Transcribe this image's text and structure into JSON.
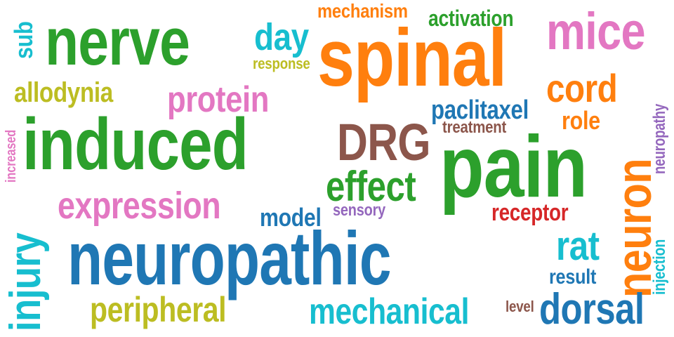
{
  "colors": {
    "green": "#2ca02c",
    "blue": "#1f77b4",
    "orange": "#ff7f0e",
    "pink": "#e377c2",
    "cyan": "#17becf",
    "olive": "#bcbd22",
    "brown": "#8c564b",
    "red": "#d62728",
    "purple": "#9467bd"
  },
  "words": [
    {
      "text": "nerve",
      "color": "#2ca02c"
    },
    {
      "text": "spinal",
      "color": "#ff7f0e"
    },
    {
      "text": "mice",
      "color": "#e377c2"
    },
    {
      "text": "induced",
      "color": "#2ca02c"
    },
    {
      "text": "pain",
      "color": "#2ca02c"
    },
    {
      "text": "neuropathic",
      "color": "#1f77b4"
    },
    {
      "text": "DRG",
      "color": "#8c564b"
    },
    {
      "text": "neuron",
      "color": "#ff7f0e"
    },
    {
      "text": "injury",
      "color": "#17becf"
    },
    {
      "text": "expression",
      "color": "#e377c2"
    },
    {
      "text": "effect",
      "color": "#2ca02c"
    },
    {
      "text": "protein",
      "color": "#e377c2"
    },
    {
      "text": "cord",
      "color": "#ff7f0e"
    },
    {
      "text": "day",
      "color": "#17becf"
    },
    {
      "text": "dorsal",
      "color": "#1f77b4"
    },
    {
      "text": "mechanical",
      "color": "#17becf"
    },
    {
      "text": "peripheral",
      "color": "#bcbd22"
    },
    {
      "text": "rat",
      "color": "#17becf"
    },
    {
      "text": "paclitaxel",
      "color": "#1f77b4"
    },
    {
      "text": "allodynia",
      "color": "#bcbd22"
    },
    {
      "text": "activation",
      "color": "#2ca02c"
    },
    {
      "text": "mechanism",
      "color": "#ff7f0e"
    },
    {
      "text": "receptor",
      "color": "#d62728"
    },
    {
      "text": "model",
      "color": "#1f77b4"
    },
    {
      "text": "role",
      "color": "#ff7f0e"
    },
    {
      "text": "result",
      "color": "#1f77b4"
    },
    {
      "text": "treatment",
      "color": "#8c564b"
    },
    {
      "text": "sub",
      "color": "#17becf"
    },
    {
      "text": "response",
      "color": "#bcbd22"
    },
    {
      "text": "sensory",
      "color": "#9467bd"
    },
    {
      "text": "level",
      "color": "#8c564b"
    },
    {
      "text": "injection",
      "color": "#17becf"
    },
    {
      "text": "neuropathy",
      "color": "#9467bd"
    },
    {
      "text": "increased",
      "color": "#e377c2"
    }
  ]
}
